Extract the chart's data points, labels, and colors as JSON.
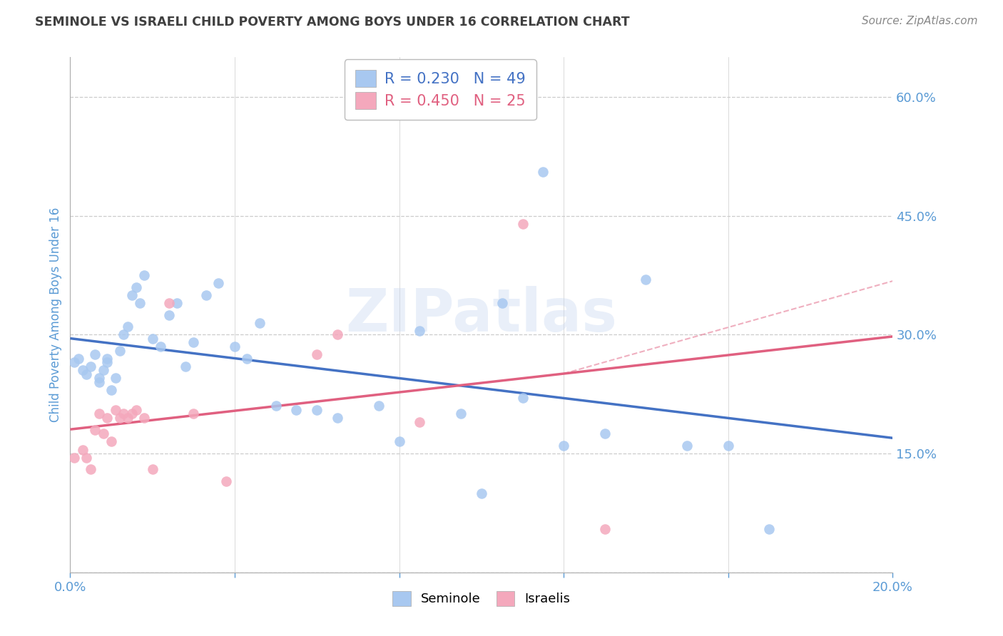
{
  "title": "SEMINOLE VS ISRAELI CHILD POVERTY AMONG BOYS UNDER 16 CORRELATION CHART",
  "source": "Source: ZipAtlas.com",
  "ylabel": "Child Poverty Among Boys Under 16",
  "xlim": [
    0.0,
    0.2
  ],
  "ylim": [
    0.0,
    0.65
  ],
  "yticks": [
    0.0,
    0.15,
    0.3,
    0.45,
    0.6
  ],
  "xticks": [
    0.0,
    0.04,
    0.08,
    0.12,
    0.16,
    0.2
  ],
  "seminole_R": 0.23,
  "seminole_N": 49,
  "israelis_R": 0.45,
  "israelis_N": 25,
  "seminole_color": "#A8C8F0",
  "israelis_color": "#F4A8BC",
  "seminole_line_color": "#4472C4",
  "israelis_line_color": "#E06080",
  "seminole_x": [
    0.001,
    0.002,
    0.003,
    0.004,
    0.005,
    0.006,
    0.007,
    0.007,
    0.008,
    0.009,
    0.009,
    0.01,
    0.011,
    0.012,
    0.013,
    0.014,
    0.015,
    0.016,
    0.017,
    0.018,
    0.02,
    0.022,
    0.024,
    0.026,
    0.028,
    0.03,
    0.033,
    0.036,
    0.04,
    0.043,
    0.046,
    0.05,
    0.055,
    0.06,
    0.065,
    0.075,
    0.08,
    0.085,
    0.095,
    0.1,
    0.105,
    0.11,
    0.115,
    0.12,
    0.13,
    0.14,
    0.15,
    0.16,
    0.17
  ],
  "seminole_y": [
    0.265,
    0.27,
    0.255,
    0.25,
    0.26,
    0.275,
    0.245,
    0.24,
    0.255,
    0.27,
    0.265,
    0.23,
    0.245,
    0.28,
    0.3,
    0.31,
    0.35,
    0.36,
    0.34,
    0.375,
    0.295,
    0.285,
    0.325,
    0.34,
    0.26,
    0.29,
    0.35,
    0.365,
    0.285,
    0.27,
    0.315,
    0.21,
    0.205,
    0.205,
    0.195,
    0.21,
    0.165,
    0.305,
    0.2,
    0.1,
    0.34,
    0.22,
    0.505,
    0.16,
    0.175,
    0.37,
    0.16,
    0.16,
    0.055
  ],
  "israelis_x": [
    0.001,
    0.003,
    0.004,
    0.005,
    0.006,
    0.007,
    0.008,
    0.009,
    0.01,
    0.011,
    0.012,
    0.013,
    0.014,
    0.015,
    0.016,
    0.018,
    0.02,
    0.024,
    0.03,
    0.038,
    0.06,
    0.065,
    0.085,
    0.11,
    0.13
  ],
  "israelis_y": [
    0.145,
    0.155,
    0.145,
    0.13,
    0.18,
    0.2,
    0.175,
    0.195,
    0.165,
    0.205,
    0.195,
    0.2,
    0.195,
    0.2,
    0.205,
    0.195,
    0.13,
    0.34,
    0.2,
    0.115,
    0.275,
    0.3,
    0.19,
    0.44,
    0.055
  ],
  "background_color": "#FFFFFF",
  "grid_color": "#CCCCCC",
  "tick_color": "#5B9BD5",
  "title_color": "#404040",
  "axis_color": "#AAAAAA"
}
